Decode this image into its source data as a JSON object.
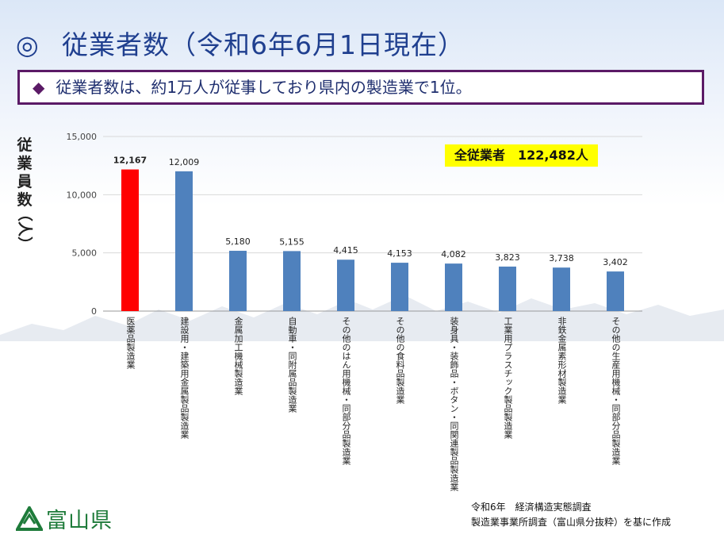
{
  "header": {
    "mark": "◎",
    "title": "従業者数（令和6年6月1日現在）"
  },
  "banner": {
    "bullet": "◆",
    "text": "従業者数は、約1万人が従事しており県内の製造業で1位。"
  },
  "total_box": "全従業者　122,482人",
  "colors": {
    "highlight": "#ff0000",
    "bar": "#4f81bd",
    "title": "#1f3f8f",
    "border": "#5b1a66",
    "logo": "#1e7b3a"
  },
  "chart_data": {
    "type": "bar",
    "ylabel_chars": [
      "従",
      "業",
      "員",
      "数",
      "（人）"
    ],
    "ylim": [
      0,
      15000
    ],
    "yticks": [
      0,
      5000,
      10000,
      15000
    ],
    "ytick_labels": [
      "0",
      "5,000",
      "10,000",
      "15,000"
    ],
    "grid": true,
    "categories": [
      "医薬品製造業",
      "建設用・建築用金属製品製造業",
      "金属加工機械製造業",
      "自動車・同附属品製造業",
      "その他のはん用機械・同部分品製造業",
      "その他の食料品製造業",
      "装身具・装飾品・ボタン・同関連製品製造業",
      "工業用プラスチック製品製造業",
      "非鉄金属素形材製造業",
      "その他の生産用機械・同部分品製造業"
    ],
    "values": [
      12167,
      12009,
      5180,
      5155,
      4415,
      4153,
      4082,
      3823,
      3738,
      3402
    ],
    "value_labels": [
      "12,167",
      "12,009",
      "5,180",
      "5,155",
      "4,415",
      "4,153",
      "4,082",
      "3,823",
      "3,738",
      "3,402"
    ],
    "highlight_index": 0
  },
  "logo": {
    "text": "富山県",
    "icon": "toyama-prefecture-emblem-icon"
  },
  "source": {
    "line1": "令和6年　経済構造実態調査",
    "line2": "製造業事業所調査（富山県分抜粋）を基に作成"
  }
}
